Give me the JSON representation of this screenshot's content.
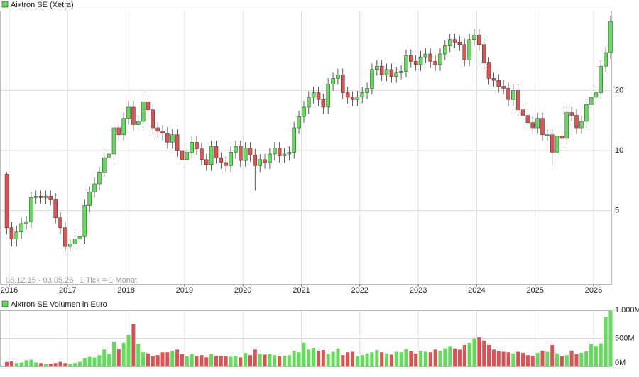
{
  "chart_data": [
    {
      "type": "candlestick",
      "title": "Aixtron SE (Xetra)",
      "annotations": [
        "08.12.15 - 03.05.26",
        "1 Tick = 1 Monat"
      ],
      "up_color": "#62dc5a",
      "down_color": "#dc5252",
      "log_scale": true,
      "grid": true,
      "xlim": [
        2015.842,
        2026.316
      ],
      "xticks": [
        2016,
        2017,
        2018,
        2019,
        2020,
        2021,
        2022,
        2023,
        2024,
        2025,
        2026
      ],
      "ylim": [
        2.14,
        50.3
      ],
      "yticks": [
        5,
        10,
        20
      ],
      "x": [
        2015.958,
        2016.042,
        2016.125,
        2016.208,
        2016.292,
        2016.375,
        2016.458,
        2016.542,
        2016.625,
        2016.708,
        2016.792,
        2016.875,
        2016.958,
        2017.042,
        2017.125,
        2017.208,
        2017.292,
        2017.375,
        2017.458,
        2017.542,
        2017.625,
        2017.708,
        2017.792,
        2017.875,
        2017.958,
        2018.042,
        2018.125,
        2018.208,
        2018.292,
        2018.375,
        2018.458,
        2018.542,
        2018.625,
        2018.708,
        2018.792,
        2018.875,
        2018.958,
        2019.042,
        2019.125,
        2019.208,
        2019.292,
        2019.375,
        2019.458,
        2019.542,
        2019.625,
        2019.708,
        2019.792,
        2019.875,
        2019.958,
        2020.042,
        2020.125,
        2020.208,
        2020.292,
        2020.375,
        2020.458,
        2020.542,
        2020.625,
        2020.708,
        2020.792,
        2020.875,
        2020.958,
        2021.042,
        2021.125,
        2021.208,
        2021.292,
        2021.375,
        2021.458,
        2021.542,
        2021.625,
        2021.708,
        2021.792,
        2021.875,
        2021.958,
        2022.042,
        2022.125,
        2022.208,
        2022.292,
        2022.375,
        2022.458,
        2022.542,
        2022.625,
        2022.708,
        2022.792,
        2022.875,
        2022.958,
        2023.042,
        2023.125,
        2023.208,
        2023.292,
        2023.375,
        2023.458,
        2023.542,
        2023.625,
        2023.708,
        2023.792,
        2023.875,
        2023.958,
        2024.042,
        2024.125,
        2024.208,
        2024.292,
        2024.375,
        2024.458,
        2024.542,
        2024.625,
        2024.708,
        2024.792,
        2024.875,
        2024.958,
        2025.042,
        2025.125,
        2025.208,
        2025.292,
        2025.375,
        2025.458,
        2025.542,
        2025.625,
        2025.708,
        2025.792,
        2025.875,
        2025.958,
        2026.042,
        2026.125,
        2026.208,
        2026.292
      ],
      "open": [
        7.6,
        4.1,
        3.6,
        3.9,
        4.3,
        4.4,
        5.8,
        5.9,
        5.8,
        5.9,
        5.7,
        4.6,
        4.1,
        3.3,
        3.4,
        3.6,
        3.7,
        5.3,
        6.2,
        6.8,
        7.8,
        9.2,
        9.6,
        13.0,
        12.0,
        14.5,
        16.5,
        13.5,
        14.0,
        17.5,
        16.0,
        13.0,
        12.5,
        12.2,
        11.0,
        12.0,
        10.0,
        9.0,
        9.8,
        11.0,
        10.2,
        9.0,
        8.5,
        10.5,
        9.2,
        8.7,
        8.4,
        9.8,
        10.5,
        8.9,
        10.3,
        9.5,
        8.4,
        9.0,
        8.7,
        9.6,
        10.3,
        9.4,
        9.6,
        9.8,
        13.0,
        14.8,
        16.5,
        18.5,
        19.5,
        18.0,
        16.5,
        21.5,
        23.0,
        24.0,
        19.5,
        18.5,
        18.0,
        18.6,
        19.5,
        20.5,
        25.5,
        26.5,
        24.0,
        25.5,
        23.5,
        24.5,
        25.0,
        30.0,
        28.0,
        27.0,
        29.5,
        30.5,
        28.0,
        27.0,
        30.5,
        33.5,
        36.0,
        35.0,
        34.0,
        28.5,
        36.0,
        38.0,
        34.0,
        27.5,
        23.0,
        22.5,
        21.0,
        20.5,
        18.0,
        20.0,
        16.0,
        15.0,
        13.8,
        13.0,
        14.5,
        12.0,
        12.0,
        9.8,
        11.8,
        11.5,
        15.5,
        15.0,
        13.0,
        14.0,
        17.0,
        18.5,
        19.5,
        26.5,
        31.0
      ],
      "high": [
        7.8,
        4.4,
        4.2,
        4.6,
        4.7,
        6.2,
        6.3,
        6.3,
        6.3,
        6.3,
        6.1,
        4.9,
        4.4,
        3.6,
        3.9,
        4.0,
        5.7,
        6.6,
        7.3,
        8.3,
        9.8,
        10.3,
        13.9,
        13.9,
        15.5,
        17.7,
        17.7,
        15.0,
        19.8,
        18.7,
        17.1,
        13.9,
        13.4,
        13.1,
        12.8,
        12.8,
        10.7,
        10.5,
        11.8,
        11.8,
        10.9,
        9.6,
        11.2,
        11.2,
        9.8,
        9.3,
        10.5,
        11.2,
        11.2,
        11.0,
        11.0,
        10.2,
        9.6,
        9.6,
        10.3,
        11.0,
        11.0,
        10.3,
        10.5,
        13.9,
        15.8,
        17.7,
        19.8,
        20.9,
        20.9,
        19.3,
        23.0,
        24.6,
        25.7,
        25.7,
        20.9,
        19.8,
        19.9,
        20.9,
        21.9,
        27.3,
        28.4,
        28.4,
        27.3,
        27.3,
        26.2,
        26.8,
        32.1,
        32.1,
        30.0,
        31.6,
        32.6,
        32.6,
        30.0,
        32.6,
        35.8,
        38.5,
        38.5,
        37.5,
        36.4,
        38.5,
        40.7,
        40.7,
        36.4,
        29.4,
        24.6,
        24.1,
        22.5,
        21.9,
        21.4,
        21.4,
        17.1,
        16.1,
        14.8,
        15.5,
        15.5,
        12.8,
        12.8,
        12.6,
        12.6,
        16.6,
        16.6,
        16.1,
        15.0,
        18.2,
        19.8,
        20.9,
        28.4,
        33.2,
        47.6
      ],
      "low": [
        3.8,
        3.3,
        3.3,
        3.6,
        4.0,
        4.1,
        5.4,
        5.4,
        5.4,
        5.3,
        4.3,
        3.8,
        3.1,
        3.1,
        3.2,
        3.3,
        3.4,
        4.9,
        5.8,
        6.3,
        7.3,
        8.6,
        8.9,
        11.2,
        11.2,
        13.5,
        12.6,
        12.6,
        13.0,
        14.9,
        12.1,
        11.6,
        11.3,
        10.2,
        10.2,
        9.3,
        8.4,
        8.4,
        9.1,
        9.5,
        8.4,
        7.9,
        7.9,
        8.6,
        8.1,
        7.8,
        7.8,
        9.1,
        8.3,
        8.3,
        8.8,
        6.3,
        7.8,
        8.1,
        8.1,
        8.9,
        8.7,
        8.7,
        8.9,
        9.1,
        12.1,
        13.8,
        15.3,
        17.2,
        16.7,
        15.3,
        15.3,
        20.0,
        21.4,
        18.1,
        17.2,
        16.7,
        16.7,
        17.3,
        18.1,
        19.1,
        23.7,
        22.3,
        22.3,
        21.9,
        21.9,
        22.8,
        23.3,
        26.0,
        25.1,
        25.1,
        27.4,
        26.0,
        25.1,
        25.1,
        28.4,
        31.2,
        32.6,
        31.6,
        26.5,
        26.5,
        33.5,
        31.6,
        25.6,
        21.4,
        20.9,
        19.5,
        19.1,
        16.7,
        16.7,
        14.9,
        14.0,
        12.8,
        12.1,
        12.1,
        11.2,
        11.2,
        8.4,
        9.1,
        10.7,
        10.7,
        14.0,
        12.1,
        12.1,
        13.0,
        15.8,
        17.2,
        18.1,
        24.6,
        28.8
      ],
      "close": [
        4.1,
        3.6,
        3.9,
        4.3,
        4.4,
        5.8,
        5.9,
        5.8,
        5.9,
        5.7,
        4.6,
        4.1,
        3.3,
        3.4,
        3.6,
        3.7,
        5.3,
        6.2,
        6.8,
        7.8,
        9.2,
        9.6,
        13.0,
        12.0,
        14.5,
        16.5,
        13.5,
        14.0,
        17.5,
        16.0,
        13.0,
        12.5,
        12.2,
        11.0,
        12.0,
        10.0,
        9.0,
        9.8,
        11.0,
        10.2,
        9.0,
        8.5,
        10.5,
        9.2,
        8.7,
        8.4,
        9.8,
        10.5,
        8.9,
        10.3,
        9.5,
        8.4,
        9.0,
        8.7,
        9.6,
        10.3,
        9.4,
        9.6,
        9.8,
        13.0,
        14.8,
        16.5,
        18.5,
        19.5,
        18.0,
        16.5,
        21.5,
        23.0,
        24.0,
        19.5,
        18.5,
        18.0,
        18.6,
        19.5,
        20.5,
        25.5,
        26.5,
        24.0,
        25.5,
        23.5,
        24.5,
        25.0,
        30.0,
        28.0,
        27.0,
        29.5,
        30.5,
        28.0,
        27.0,
        30.5,
        33.5,
        36.0,
        35.0,
        34.0,
        28.5,
        36.0,
        38.0,
        34.0,
        27.5,
        23.0,
        22.5,
        21.0,
        20.5,
        18.0,
        20.0,
        16.0,
        15.0,
        13.8,
        13.0,
        14.5,
        12.0,
        12.0,
        9.8,
        11.8,
        11.5,
        15.5,
        15.0,
        13.0,
        14.0,
        17.0,
        18.5,
        19.5,
        26.5,
        31.0,
        44.5
      ]
    },
    {
      "type": "bar",
      "title": "Aixtron SE Volumen in Euro",
      "up_color": "#62dc5a",
      "down_color": "#dc5252",
      "grid": true,
      "ylim": [
        0,
        1000
      ],
      "yticks": [
        {
          "value": 0,
          "label": "0M"
        },
        {
          "value": 500,
          "label": "500M"
        },
        {
          "value": 1000,
          "label": "1.000M"
        }
      ],
      "values": [
        80,
        90,
        60,
        70,
        110,
        120,
        70,
        60,
        40,
        50,
        60,
        80,
        60,
        50,
        60,
        80,
        150,
        170,
        160,
        200,
        300,
        220,
        440,
        310,
        420,
        560,
        760,
        400,
        250,
        230,
        180,
        200,
        250,
        250,
        280,
        300,
        220,
        180,
        220,
        180,
        200,
        160,
        220,
        180,
        190,
        180,
        170,
        190,
        160,
        240,
        200,
        300,
        220,
        210,
        220,
        200,
        180,
        190,
        200,
        280,
        250,
        420,
        300,
        330,
        280,
        290,
        220,
        260,
        320,
        200,
        250,
        260,
        180,
        200,
        230,
        250,
        290,
        250,
        230,
        210,
        260,
        250,
        310,
        270,
        230,
        280,
        260,
        250,
        300,
        280,
        320,
        350,
        320,
        300,
        380,
        420,
        500,
        520,
        460,
        380,
        300,
        270,
        260,
        250,
        230,
        260,
        240,
        200,
        190,
        240,
        280,
        260,
        380,
        230,
        180,
        200,
        280,
        220,
        240,
        270,
        400,
        350,
        410,
        880,
        1000
      ]
    }
  ]
}
